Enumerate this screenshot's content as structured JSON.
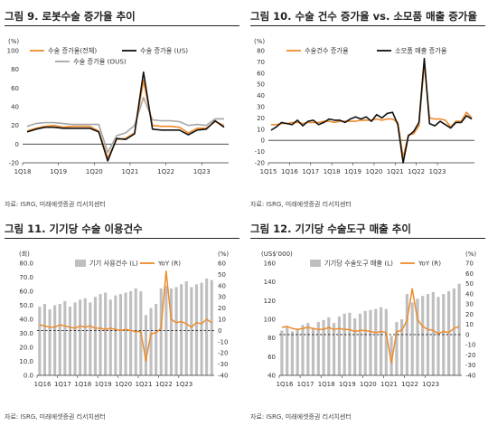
{
  "chart_data": [
    {
      "type": "line",
      "title": "그림 9. 로봇수술 증가율 추이",
      "unit_y": "(%)",
      "ylim": [
        -20,
        100
      ],
      "yticks": [
        -20,
        0,
        20,
        40,
        60,
        80,
        100
      ],
      "xticklabels": [
        "1Q18",
        "1Q19",
        "1Q20",
        "1Q21",
        "1Q22",
        "1Q23"
      ],
      "tick_index": [
        0,
        4,
        8,
        12,
        16,
        20
      ],
      "n": 23,
      "legend": [
        "수술 증가율(전체)",
        "수술 증가율 (US)",
        "수술 증가율 (OUS)"
      ],
      "series": [
        {
          "name": "수술 증가율(전체)",
          "color": "#ee8a2a",
          "values": [
            14,
            17,
            19,
            20,
            18,
            19,
            19,
            19,
            14,
            -15,
            5,
            6,
            12,
            68,
            20,
            19,
            19,
            18,
            12,
            17,
            17,
            24,
            20
          ]
        },
        {
          "name": "수술 증가율 (US)",
          "color": "#111111",
          "values": [
            13,
            16,
            18,
            18,
            17,
            17,
            17,
            17,
            13,
            -18,
            6,
            5,
            11,
            77,
            16,
            15,
            15,
            15,
            10,
            15,
            16,
            25,
            18
          ]
        },
        {
          "name": "수술 증가율 (OUS)",
          "color": "#a6a6a6",
          "values": [
            19,
            22,
            23,
            23,
            22,
            21,
            21,
            21,
            21,
            -9,
            9,
            12,
            20,
            50,
            26,
            25,
            25,
            24,
            20,
            21,
            20,
            27,
            27
          ]
        }
      ],
      "source": "자료: ISRG, 미래에셋증권 리서치센터"
    },
    {
      "type": "line",
      "title": "그림 10. 수술 건수 증가율 vs. 소모품 매출 증가율",
      "unit_y": "(%)",
      "ylim": [
        -20,
        80
      ],
      "yticks": [
        -20,
        -10,
        0,
        10,
        20,
        30,
        40,
        50,
        60,
        70,
        80
      ],
      "xticklabels": [
        "1Q15",
        "1Q16",
        "1Q17",
        "1Q18",
        "1Q19",
        "1Q20",
        "1Q21",
        "1Q22",
        "1Q23"
      ],
      "tick_index": [
        0,
        4,
        8,
        12,
        16,
        20,
        24,
        28,
        32
      ],
      "n": 35,
      "legend": [
        "수술건수 증가율",
        "소모품 매출 증가율"
      ],
      "series": [
        {
          "name": "수술건수 증가율",
          "color": "#ee8a2a",
          "values": [
            14,
            14,
            15,
            15,
            16,
            16,
            15,
            16,
            16,
            16,
            17,
            17,
            16,
            17,
            17,
            17,
            17,
            18,
            18,
            18,
            19,
            18,
            19,
            19,
            16,
            -15,
            5,
            6,
            13,
            68,
            20,
            19,
            19,
            18,
            12,
            17,
            17,
            25,
            20
          ]
        },
        {
          "name": "소모품 매출 증가율",
          "color": "#111111",
          "values": [
            9,
            12,
            16,
            15,
            14,
            18,
            13,
            17,
            18,
            14,
            16,
            19,
            18,
            18,
            16,
            19,
            21,
            19,
            21,
            17,
            23,
            20,
            24,
            25,
            14,
            -20,
            4,
            8,
            16,
            73,
            15,
            13,
            17,
            14,
            11,
            16,
            16,
            22,
            19
          ]
        }
      ],
      "source": "자료: ISRG, 미래에셋증권 리서치센터"
    },
    {
      "type": "bar+line",
      "title": "그림 11. 기기당 수술 이용건수",
      "unit_left": "(회)",
      "unit_right": "(%)",
      "ylim_left": [
        0,
        80
      ],
      "yticks_left": [
        0,
        10,
        20,
        30,
        40,
        50,
        60,
        70,
        80
      ],
      "ylim_right": [
        -40,
        60
      ],
      "yticks_right": [
        -40,
        -30,
        -20,
        -10,
        0,
        10,
        20,
        30,
        40,
        50,
        60
      ],
      "xticklabels": [
        "1Q16",
        "1Q17",
        "1Q18",
        "1Q19",
        "1Q20",
        "1Q21",
        "1Q22",
        "1Q23"
      ],
      "tick_index": [
        0,
        4,
        8,
        12,
        16,
        20,
        24,
        28
      ],
      "n": 31,
      "legend": [
        "기기 사용건수 (L)",
        "YoY (R)"
      ],
      "bars": {
        "name": "기기 사용건수 (L)",
        "color": "#bfbfbf",
        "values": [
          49,
          51,
          47,
          50,
          51,
          53,
          49,
          52,
          54,
          55,
          52,
          56,
          58,
          59,
          54,
          57,
          58,
          59,
          60,
          62,
          60,
          43,
          48,
          51,
          62,
          64,
          62,
          63,
          65,
          67,
          63,
          65,
          66,
          69,
          68
        ]
      },
      "line": {
        "name": "YoY (R)",
        "color": "#ee8a2a",
        "values": [
          5,
          4,
          3,
          3,
          5,
          4,
          3,
          2,
          4,
          3,
          4,
          2,
          2,
          1,
          2,
          1,
          0,
          1,
          0,
          -1,
          -1,
          -27,
          -3,
          -2,
          2,
          53,
          10,
          7,
          8,
          6,
          3,
          7,
          6,
          10,
          7
        ]
      },
      "source": "자료: ISRG, 미래에셋증권 리서치센터"
    },
    {
      "type": "bar+line",
      "title": "그림 12. 기기당 수술도구 매출 추이",
      "unit_left": "(US$'000)",
      "unit_right": "(%)",
      "ylim_left": [
        40,
        160
      ],
      "yticks_left": [
        40,
        60,
        80,
        100,
        120,
        140,
        160
      ],
      "ylim_right": [
        -40,
        70
      ],
      "yticks_right": [
        -40,
        -30,
        -20,
        -10,
        0,
        10,
        20,
        30,
        40,
        50,
        60,
        70
      ],
      "xticklabels": [
        "1Q16",
        "1Q17",
        "1Q18",
        "1Q19",
        "1Q20",
        "1Q21",
        "1Q22",
        "1Q23"
      ],
      "tick_index": [
        0,
        4,
        8,
        12,
        16,
        20,
        24,
        28
      ],
      "n": 35,
      "legend": [
        "기기당 수술도구 매출 (L)",
        "YoY (R)"
      ],
      "bars": {
        "name": "기기당 수술도구 매출 (L)",
        "color": "#bfbfbf",
        "values": [
          88,
          92,
          87,
          90,
          94,
          96,
          90,
          97,
          99,
          102,
          96,
          103,
          106,
          107,
          101,
          106,
          109,
          110,
          111,
          113,
          111,
          82,
          97,
          100,
          127,
          118,
          122,
          125,
          127,
          129,
          124,
          127,
          130,
          133,
          138
        ]
      },
      "line": {
        "name": "YoY (R)",
        "color": "#ee8a2a",
        "values": [
          7,
          8,
          6,
          5,
          6,
          7,
          6,
          5,
          5,
          7,
          5,
          6,
          5,
          5,
          3,
          4,
          4,
          3,
          2,
          3,
          2,
          -28,
          3,
          4,
          14,
          45,
          15,
          8,
          5,
          4,
          1,
          3,
          2,
          6,
          8
        ]
      },
      "source": "자료: ISRG, 미래에셋증권 리서치센터"
    }
  ]
}
